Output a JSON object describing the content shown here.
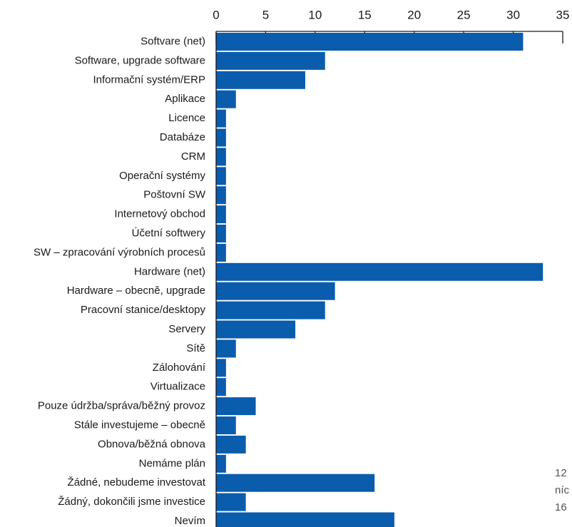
{
  "chart_data": {
    "type": "barh",
    "categories": [
      "Softvare (net)",
      "Software, upgrade software",
      "Informační systém/ERP",
      "Aplikace",
      "Licence",
      "Databáze",
      "CRM",
      "Operační systémy",
      "Poštovní SW",
      "Internetový obchod",
      "Účetní softwery",
      "SW – zpracování výrobních procesů",
      "Hardware (net)",
      "Hardware – obecně, upgrade",
      "Pracovní stanice/desktopy",
      "Servery",
      "Sítě",
      "Zálohování",
      "Virtualizace",
      "Pouze údržba/správa/běžný provoz",
      "Stále investujeme – obecně",
      "Obnova/běžná obnova",
      "Nemáme plán",
      "Žádné, nebudeme investovat",
      "Žádný, dokončili jsme investice",
      "Nevím"
    ],
    "values": [
      31,
      11,
      9,
      2,
      1,
      1,
      1,
      1,
      1,
      1,
      1,
      1,
      33,
      12,
      11,
      8,
      2,
      1,
      1,
      4,
      2,
      3,
      1,
      16,
      3,
      18
    ],
    "color": "#0a5cad",
    "xlim": [
      0,
      35
    ],
    "xticks": [
      0,
      5,
      10,
      15,
      20,
      25,
      30,
      35
    ],
    "annotations": [
      "12",
      "níc",
      "16"
    ]
  }
}
